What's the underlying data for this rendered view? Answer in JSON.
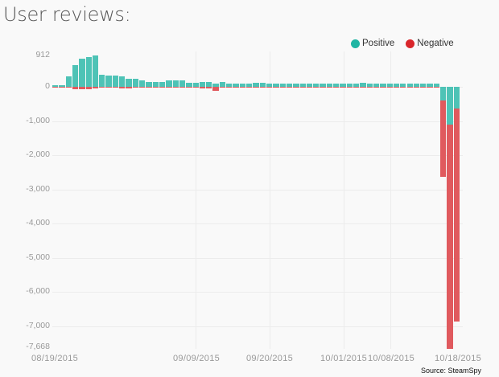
{
  "title": "User reviews:",
  "legend": [
    {
      "label": "Positive",
      "color": "#1fb5a3"
    },
    {
      "label": "Negative",
      "color": "#d9262b"
    }
  ],
  "source": "Source: SteamSpy",
  "chart_data": {
    "type": "bar",
    "stacked": true,
    "title": "User reviews:",
    "xlabel": "",
    "ylabel": "",
    "ylim": [
      -7668,
      912
    ],
    "yticks": [
      912,
      0,
      -1000,
      -2000,
      -3000,
      -4000,
      -5000,
      -6000,
      -7000,
      -7668
    ],
    "ytick_labels": [
      "912",
      "0",
      "-1,000",
      "-2,000",
      "-3,000",
      "-4,000",
      "-5,000",
      "-6,000",
      "-7,000",
      "-7,668"
    ],
    "xtick_labels": [
      "08/19/2015",
      "09/09/2015",
      "09/20/2015",
      "10/01/2015",
      "10/08/2015",
      "10/18/2015"
    ],
    "legend_position": "top-right",
    "grid": true,
    "series": [
      {
        "name": "Positive",
        "color": "#4ec3b6",
        "values": [
          45,
          45,
          300,
          630,
          820,
          880,
          912,
          360,
          330,
          330,
          300,
          230,
          230,
          200,
          150,
          150,
          150,
          200,
          180,
          180,
          110,
          110,
          140,
          140,
          100,
          140,
          100,
          90,
          90,
          90,
          110,
          110,
          100,
          90,
          90,
          100,
          100,
          100,
          90,
          90,
          90,
          90,
          100,
          100,
          100,
          100,
          110,
          100,
          100,
          90,
          90,
          90,
          90,
          100,
          100,
          100,
          90,
          90,
          -400,
          -1100,
          -640
        ]
      },
      {
        "name": "Negative",
        "color": "#e05a5e",
        "values": [
          -20,
          -20,
          -20,
          -60,
          -70,
          -70,
          -40,
          -20,
          -20,
          -20,
          -40,
          -40,
          -20,
          -20,
          -20,
          -20,
          -20,
          -20,
          -20,
          -20,
          -20,
          -20,
          -40,
          -50,
          -120,
          -30,
          -20,
          -20,
          -20,
          -20,
          -20,
          -20,
          -20,
          -20,
          -20,
          -20,
          -20,
          -20,
          -20,
          -20,
          -20,
          -20,
          -20,
          -20,
          -20,
          -20,
          -20,
          -20,
          -20,
          -20,
          -20,
          -20,
          -20,
          -20,
          -20,
          -20,
          -20,
          -20,
          -2230,
          -6568,
          -6230
        ]
      }
    ]
  }
}
